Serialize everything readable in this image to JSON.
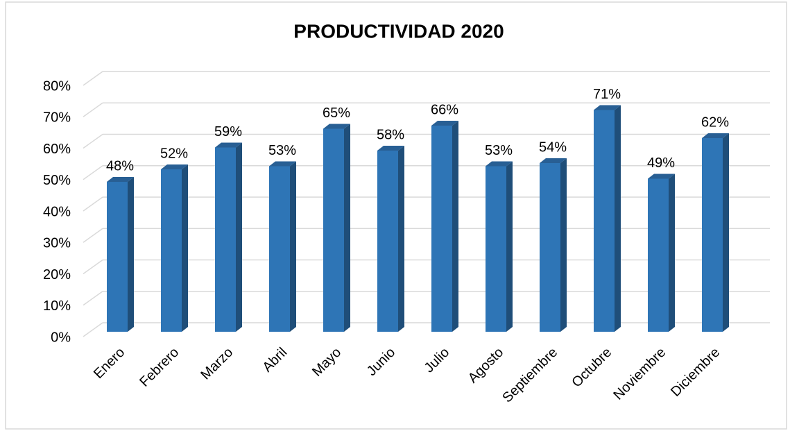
{
  "chart_data": {
    "type": "bar3d",
    "title": "PRODUCTIVIDAD 2020",
    "categories": [
      "Enero",
      "Febrero",
      "Marzo",
      "Abril",
      "Mayo",
      "Junio",
      "Julio",
      "Agosto",
      "Septiembre",
      "Octubre",
      "Noviembre",
      "Diciembre"
    ],
    "values": [
      48,
      52,
      59,
      53,
      65,
      58,
      66,
      53,
      54,
      71,
      49,
      62
    ],
    "value_labels": [
      "48%",
      "52%",
      "59%",
      "53%",
      "65%",
      "58%",
      "66%",
      "53%",
      "54%",
      "71%",
      "49%",
      "62%"
    ],
    "color": "#2e75b6",
    "ylim": [
      0,
      80
    ],
    "yticks": [
      {
        "value": 0,
        "label": "0%"
      },
      {
        "value": 10,
        "label": "10%"
      },
      {
        "value": 20,
        "label": "20%"
      },
      {
        "value": 30,
        "label": "30%"
      },
      {
        "value": 40,
        "label": "40%"
      },
      {
        "value": 50,
        "label": "50%"
      },
      {
        "value": 60,
        "label": "60%"
      },
      {
        "value": 70,
        "label": "70%"
      },
      {
        "value": 80,
        "label": "80%"
      }
    ],
    "grid": true
  }
}
